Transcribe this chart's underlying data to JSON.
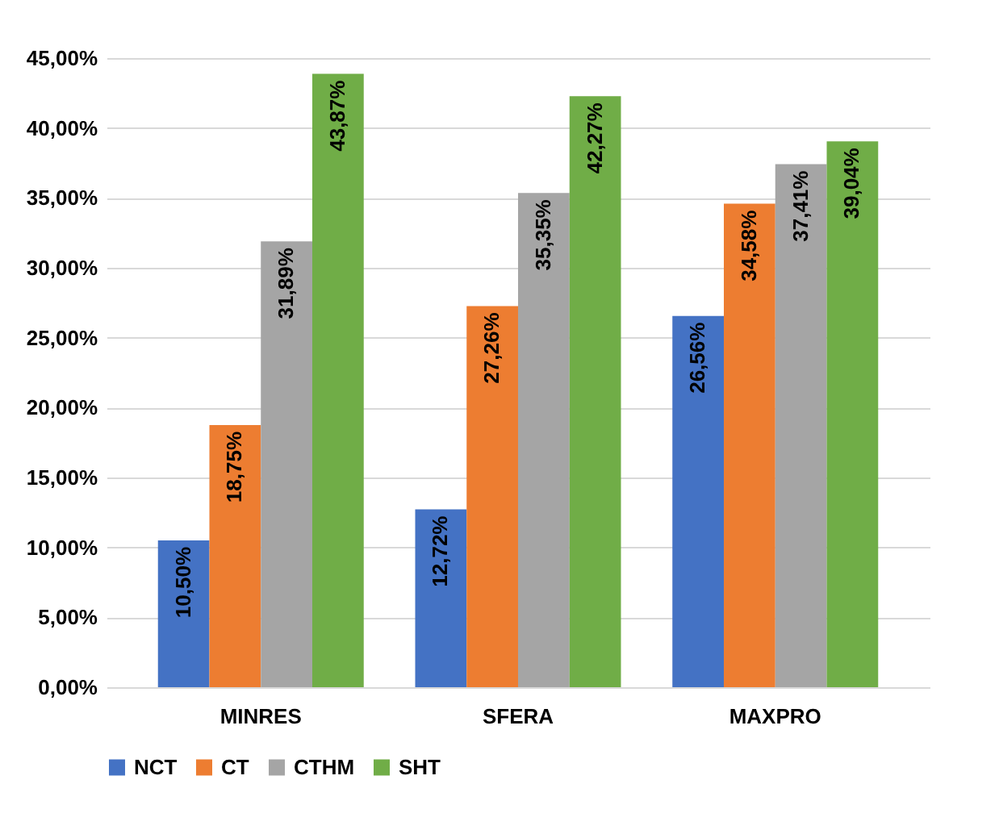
{
  "chart_data": {
    "type": "bar",
    "categories": [
      "MINRES",
      "SFERA",
      "MAXPRO"
    ],
    "series": [
      {
        "name": "NCT",
        "color": "#4472c4",
        "values": [
          10.5,
          12.72,
          26.56
        ],
        "value_labels": [
          "10,50%",
          "12,72%",
          "26,56%"
        ]
      },
      {
        "name": "CT",
        "color": "#ed7d31",
        "values": [
          18.75,
          27.26,
          34.58
        ],
        "value_labels": [
          "18,75%",
          "27,26%",
          "34,58%"
        ]
      },
      {
        "name": "CTHM",
        "color": "#a5a5a5",
        "values": [
          31.89,
          35.35,
          37.41
        ],
        "value_labels": [
          "31,89%",
          "35,35%",
          "37,41%"
        ]
      },
      {
        "name": "SHT",
        "color": "#70ad47",
        "values": [
          43.87,
          42.27,
          39.04
        ],
        "value_labels": [
          "43,87%",
          "42,27%",
          "39,04%"
        ]
      }
    ],
    "ylim": [
      0,
      45
    ],
    "yticks": [
      {
        "value": 0,
        "label": "0,00%"
      },
      {
        "value": 5,
        "label": "5,00%"
      },
      {
        "value": 10,
        "label": "10,00%"
      },
      {
        "value": 15,
        "label": "15,00%"
      },
      {
        "value": 20,
        "label": "20,00%"
      },
      {
        "value": 25,
        "label": "25,00%"
      },
      {
        "value": 30,
        "label": "30,00%"
      },
      {
        "value": 35,
        "label": "35,00%"
      },
      {
        "value": 40,
        "label": "40,00%"
      },
      {
        "value": 45,
        "label": "45,00%"
      }
    ],
    "grid": "y",
    "legend": "bottom"
  }
}
